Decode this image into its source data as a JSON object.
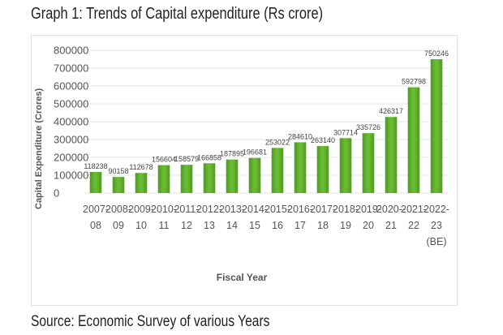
{
  "chart_data": {
    "type": "bar",
    "title": "Graph 1: Trends of Capital expenditure (Rs crore)",
    "xlabel": "Fiscal Year",
    "ylabel": "Capital Expenditure (Crores)",
    "ylim": [
      0,
      800000
    ],
    "yticks": [
      0,
      100000,
      200000,
      300000,
      400000,
      500000,
      600000,
      700000,
      800000
    ],
    "grid": true,
    "legend": "none",
    "bar_color": "#5aa92a",
    "categories": [
      [
        "2007-",
        "08"
      ],
      [
        "2008-",
        "09"
      ],
      [
        "2009-",
        "10"
      ],
      [
        "2010-",
        "11"
      ],
      [
        "2011-",
        "12"
      ],
      [
        "2012-",
        "13"
      ],
      [
        "2013-",
        "14"
      ],
      [
        "2014-",
        "15"
      ],
      [
        "2015-",
        "16"
      ],
      [
        "2016-",
        "17"
      ],
      [
        "2017-",
        "18"
      ],
      [
        "2018-",
        "19"
      ],
      [
        "2019-",
        "20"
      ],
      [
        "2020--",
        "21"
      ],
      [
        "2021-",
        "22"
      ],
      [
        "2022-",
        "23",
        "(BE)"
      ]
    ],
    "values": [
      118238,
      90158,
      112678,
      156604,
      158579,
      166858,
      187895,
      196681,
      253022,
      284610,
      263140,
      307714,
      335726,
      426317,
      592798,
      750246
    ],
    "source": "Source: Economic Survey of various Years"
  }
}
